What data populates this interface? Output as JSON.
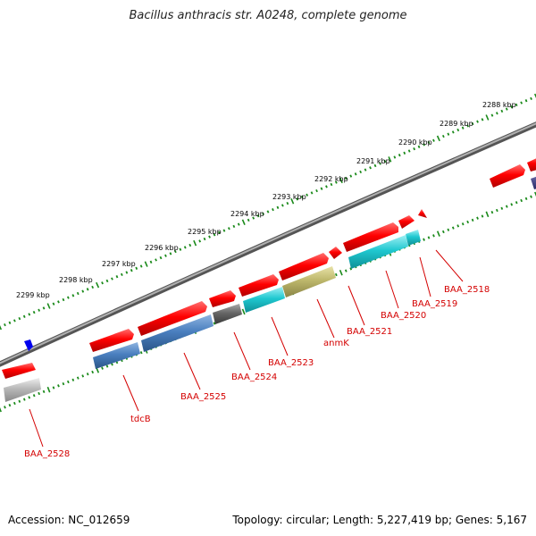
{
  "title": "Bacillus anthracis str. A0248, complete genome",
  "footer": {
    "accession": "Accession: NC_012659",
    "summary": "Topology: circular; Length: 5,227,419 bp; Genes: 5,167"
  },
  "scale_ticks": [
    "2288 kbp",
    "2289 kbp",
    "2290 kbp",
    "2291 kbp",
    "2292 kbp",
    "2293 kbp",
    "2294 kbp",
    "2295 kbp",
    "2296 kbp",
    "2297 kbp",
    "2298 kbp",
    "2299 kbp"
  ],
  "gene_labels": [
    "BAA_2518",
    "BAA_2519",
    "BAA_2520",
    "anmK",
    "BAA_2521",
    "BAA_2523",
    "BAA_2524",
    "BAA_2525",
    "tdcB",
    "BAA_2528"
  ],
  "colors": {
    "forward_cds": "#ff0000",
    "backbone": "#808080",
    "cog_blue": "#4a7fbf",
    "cog_cyan": "#1fc8d0",
    "cog_olive": "#bdb76b",
    "cog_grey": "#666666",
    "cog_silver": "#b0b0b0",
    "ticks": "#1a8a1a",
    "label": "#d40000"
  }
}
